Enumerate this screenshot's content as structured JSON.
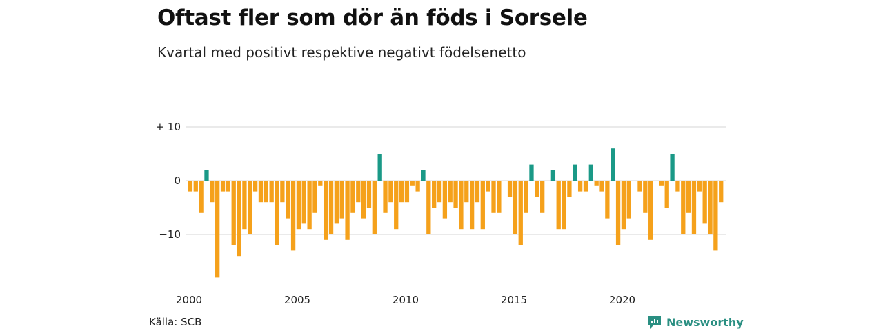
{
  "title": "Oftast fler som dör än föds i Sorsele",
  "subtitle": "Kvartal med positivt respektive negativt födelsenetto",
  "source": "Källa: SCB",
  "brand": {
    "name": "Newsworthy",
    "icon": "newsworthy-logo-icon",
    "color": "#2a8f82"
  },
  "chart_data": {
    "type": "bar",
    "title": "Oftast fler som dör än föds i Sorsele",
    "subtitle": "Kvartal med positivt respektive negativt födelsenetto",
    "x_start_year": 2000,
    "periods_per_year": 4,
    "x_ticks": [
      "2000",
      "2005",
      "2010",
      "2015",
      "2020"
    ],
    "y_ticks": [
      {
        "value": 10,
        "label": "+ 10"
      },
      {
        "value": 0,
        "label": "0"
      },
      {
        "value": -10,
        "label": "−10"
      }
    ],
    "ylim": [
      -18,
      10
    ],
    "grid": true,
    "colors": {
      "positive": "#1a9987",
      "negative": "#f5a11b"
    },
    "values": [
      -2,
      -2,
      -6,
      2,
      -4,
      -18,
      -2,
      -2,
      -12,
      -14,
      -9,
      -10,
      -2,
      -4,
      -4,
      -4,
      -12,
      -4,
      -7,
      -13,
      -9,
      -8,
      -9,
      -6,
      -1,
      -11,
      -10,
      -8,
      -7,
      -11,
      -6,
      -4,
      -7,
      -5,
      -10,
      5,
      -6,
      -4,
      -9,
      -4,
      -4,
      -1,
      -2,
      2,
      -10,
      -5,
      -4,
      -7,
      -4,
      -5,
      -9,
      -4,
      -9,
      -4,
      -9,
      -2,
      -6,
      -6,
      0,
      -3,
      -10,
      -12,
      -6,
      3,
      -3,
      -6,
      0,
      2,
      -9,
      -9,
      -3,
      3,
      -2,
      -2,
      3,
      -1,
      -2,
      -7,
      6,
      -12,
      -9,
      -7,
      0,
      -2,
      -6,
      -11,
      0,
      -1,
      -5,
      5,
      -2,
      -10,
      -6,
      -10,
      -2,
      -8,
      -10,
      -13,
      -4
    ]
  }
}
